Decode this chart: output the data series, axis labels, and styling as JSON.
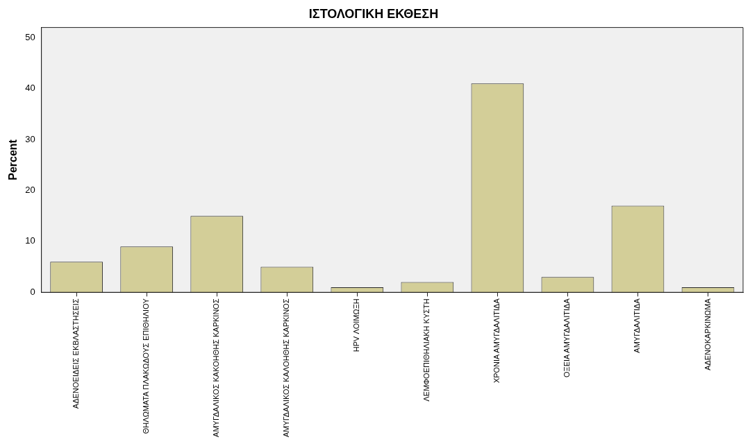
{
  "chart_data": {
    "type": "bar",
    "title": "ΙΣΤΟΛΟΓΙΚΗ ΕΚΘΕΣΗ",
    "ylabel": "Percent",
    "categories": [
      "ΑΔΕΝΟΕΙΔΕΙΣ ΕΚΒΛΑΣΤΗΣΕΙΣ",
      "ΘΗΛΩΜΑΤΑ ΠΛΑΚΩΔΟΥΣ ΕΠΙΘΗΛΙΟΥ",
      "ΑΜΥΓΔΑΛΙΚΟΣ ΚΑΚΟΗΘΗΣ ΚΑΡΚΙΝΟΣ",
      "ΑΜΥΓΔΑΛΙΚΟΣ ΚΑΛΟΗΘΗΣ ΚΑΡΚΙΝΟΣ",
      "HPV ΛΟΙΜΩΞΗ",
      "ΛΕΜΦΟΕΠΙΘΗΛΙΑΚΗ ΚΥΣΤΗ",
      "ΧΡΟΝΙΑ ΑΜΥΓΔΑΛΙΤΙΔΑ",
      "ΟΞΕΙΑ ΑΜΥΓΔΑΛΙΤΙΔΑ",
      "ΑΜΥΓΔΑΛΙΤΙΔΑ",
      "ΑΔΕΝΟΚΑΡΚΙΝΩΜΑ"
    ],
    "values": [
      6,
      9,
      15,
      5,
      1,
      2,
      41,
      3,
      17,
      1
    ],
    "color": "#d3ce98",
    "ylim": [
      0,
      52
    ],
    "yticks": [
      0,
      10,
      20,
      30,
      40,
      50
    ],
    "grid": false,
    "legend": false
  }
}
